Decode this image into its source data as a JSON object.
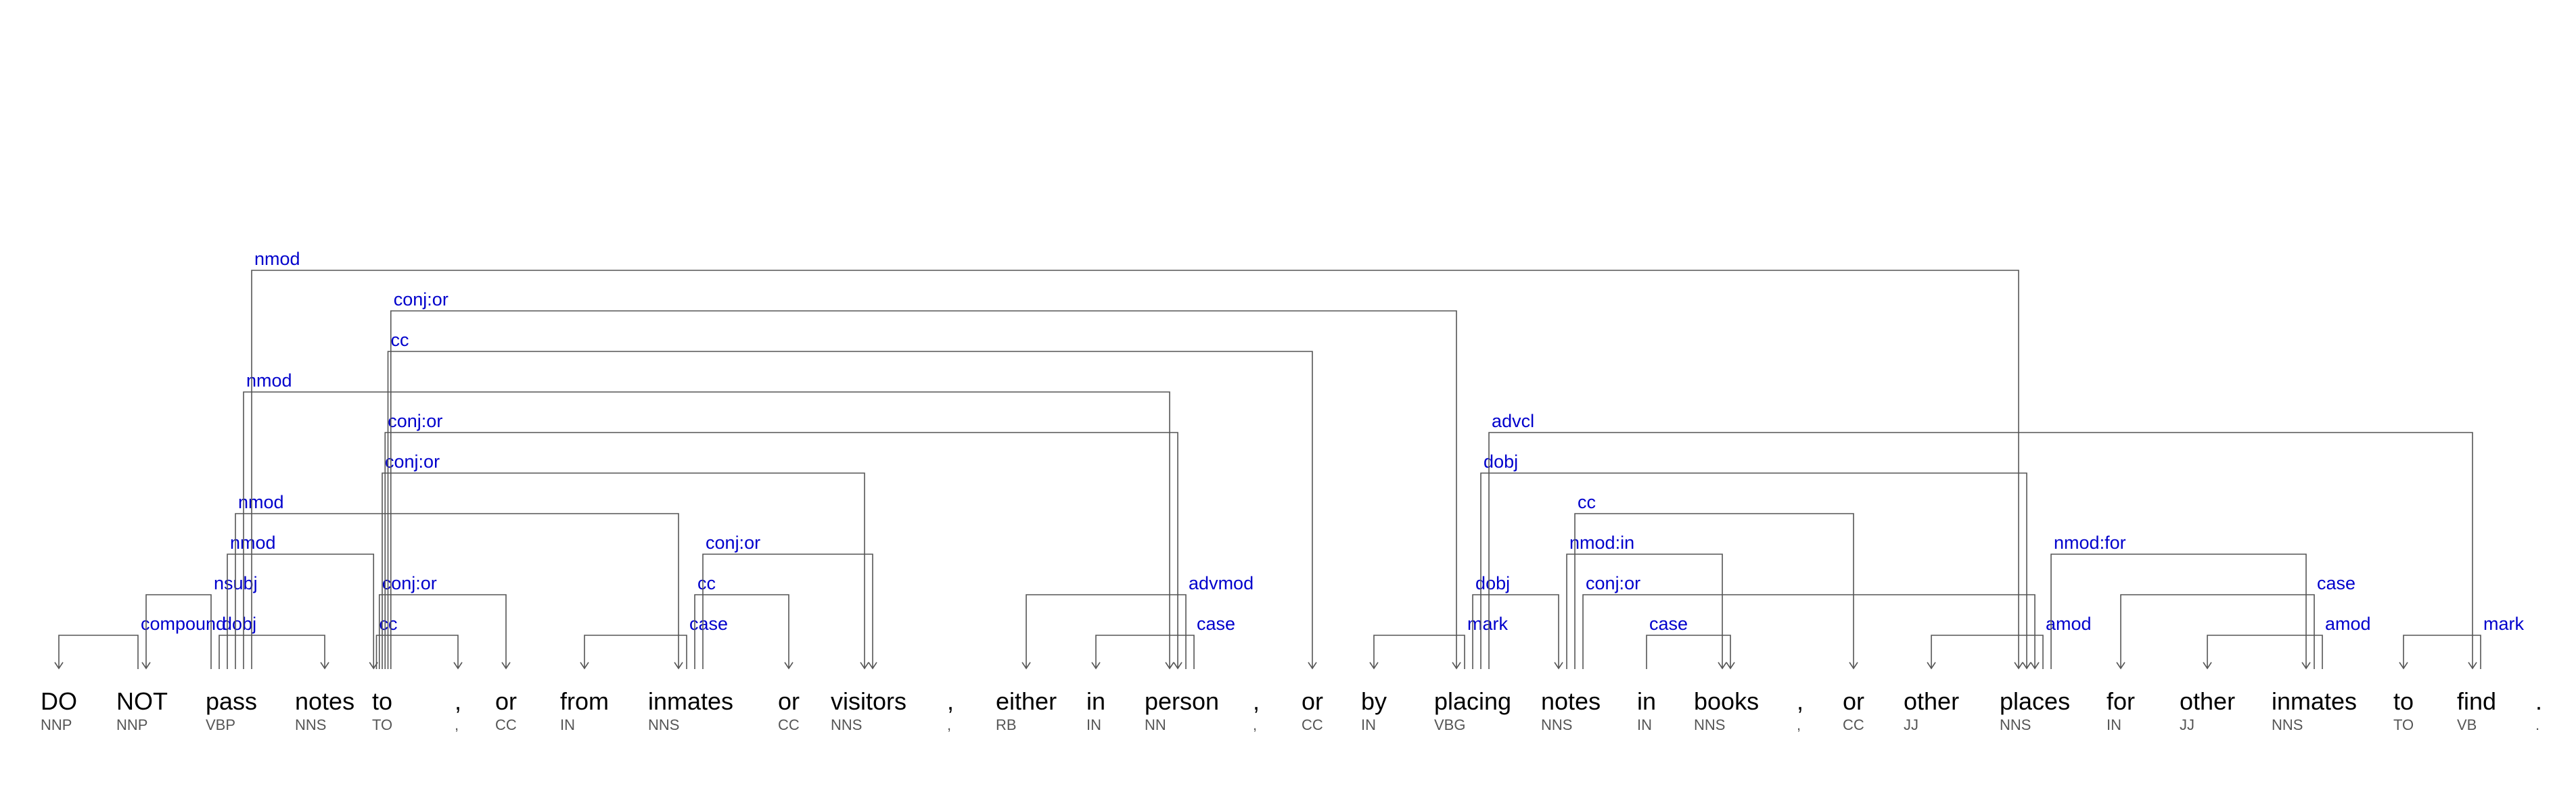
{
  "colors": {
    "relation": "#0000cc",
    "arc": "#555555",
    "token": "#000000",
    "tag": "#555555"
  },
  "tokens": [
    {
      "word": "DO",
      "tag": "NNP"
    },
    {
      "word": "NOT",
      "tag": "NNP"
    },
    {
      "word": "pass",
      "tag": "VBP"
    },
    {
      "word": "notes",
      "tag": "NNS"
    },
    {
      "word": "to",
      "tag": "TO"
    },
    {
      "word": ",",
      "tag": ","
    },
    {
      "word": "or",
      "tag": "CC"
    },
    {
      "word": "from",
      "tag": "IN"
    },
    {
      "word": "inmates",
      "tag": "NNS"
    },
    {
      "word": "or",
      "tag": "CC"
    },
    {
      "word": "visitors",
      "tag": "NNS"
    },
    {
      "word": ",",
      "tag": ","
    },
    {
      "word": "either",
      "tag": "RB"
    },
    {
      "word": "in",
      "tag": "IN"
    },
    {
      "word": "person",
      "tag": "NN"
    },
    {
      "word": ",",
      "tag": ","
    },
    {
      "word": "or",
      "tag": "CC"
    },
    {
      "word": "by",
      "tag": "IN"
    },
    {
      "word": "placing",
      "tag": "VBG"
    },
    {
      "word": "notes",
      "tag": "NNS"
    },
    {
      "word": "in",
      "tag": "IN"
    },
    {
      "word": "books",
      "tag": "NNS"
    },
    {
      "word": ",",
      "tag": ","
    },
    {
      "word": "or",
      "tag": "CC"
    },
    {
      "word": "other",
      "tag": "JJ"
    },
    {
      "word": "places",
      "tag": "NNS"
    },
    {
      "word": "for",
      "tag": "IN"
    },
    {
      "word": "other",
      "tag": "JJ"
    },
    {
      "word": "inmates",
      "tag": "NNS"
    },
    {
      "word": "to",
      "tag": "TO"
    },
    {
      "word": "find",
      "tag": "VB"
    },
    {
      "word": ".",
      "tag": "."
    }
  ],
  "arcs": [
    {
      "from": 1,
      "to": 0,
      "label": "compound"
    },
    {
      "from": 2,
      "to": 1,
      "label": "nsubj"
    },
    {
      "from": 2,
      "to": 3,
      "label": "dobj"
    },
    {
      "from": 2,
      "to": 4,
      "label": "nmod"
    },
    {
      "from": 2,
      "to": 8,
      "label": "nmod"
    },
    {
      "from": 2,
      "to": 14,
      "label": "nmod"
    },
    {
      "from": 2,
      "to": 25,
      "label": "nmod"
    },
    {
      "from": 4,
      "to": 5,
      "label": "cc"
    },
    {
      "from": 4,
      "to": 6,
      "label": "conj:or"
    },
    {
      "from": 4,
      "to": 10,
      "label": "conj:or"
    },
    {
      "from": 4,
      "to": 14,
      "label": "conj:or"
    },
    {
      "from": 4,
      "to": 16,
      "label": "cc"
    },
    {
      "from": 4,
      "to": 18,
      "label": "conj:or"
    },
    {
      "from": 8,
      "to": 7,
      "label": "case"
    },
    {
      "from": 8,
      "to": 9,
      "label": "cc"
    },
    {
      "from": 8,
      "to": 10,
      "label": "conj:or"
    },
    {
      "from": 14,
      "to": 12,
      "label": "advmod"
    },
    {
      "from": 14,
      "to": 13,
      "label": "case"
    },
    {
      "from": 18,
      "to": 17,
      "label": "mark"
    },
    {
      "from": 18,
      "to": 19,
      "label": "dobj"
    },
    {
      "from": 18,
      "to": 25,
      "label": "dobj"
    },
    {
      "from": 18,
      "to": 30,
      "label": "advcl"
    },
    {
      "from": 19,
      "to": 21,
      "label": "nmod:in"
    },
    {
      "from": 19,
      "to": 23,
      "label": "cc"
    },
    {
      "from": 19,
      "to": 25,
      "label": "conj:or"
    },
    {
      "from": 20,
      "to": 21,
      "label": "case"
    },
    {
      "from": 25,
      "to": 24,
      "label": "amod"
    },
    {
      "from": 25,
      "to": 28,
      "label": "nmod:for"
    },
    {
      "from": 28,
      "to": 26,
      "label": "case"
    },
    {
      "from": 28,
      "to": 27,
      "label": "amod"
    },
    {
      "from": 30,
      "to": 29,
      "label": "mark"
    }
  ]
}
